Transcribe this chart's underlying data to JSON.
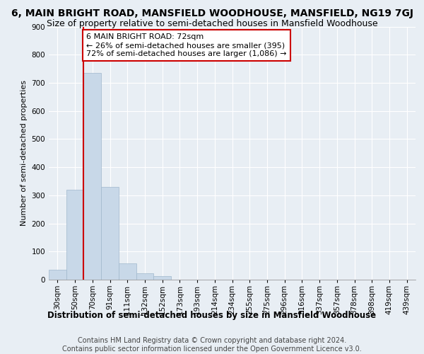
{
  "title1": "6, MAIN BRIGHT ROAD, MANSFIELD WOODHOUSE, MANSFIELD, NG19 7GJ",
  "title2": "Size of property relative to semi-detached houses in Mansfield Woodhouse",
  "xlabel_bottom": "Distribution of semi-detached houses by size in Mansfield Woodhouse",
  "ylabel": "Number of semi-detached properties",
  "footer1": "Contains HM Land Registry data © Crown copyright and database right 2024.",
  "footer2": "Contains public sector information licensed under the Open Government Licence v3.0.",
  "categories": [
    "30sqm",
    "50sqm",
    "70sqm",
    "91sqm",
    "111sqm",
    "132sqm",
    "152sqm",
    "173sqm",
    "193sqm",
    "214sqm",
    "234sqm",
    "255sqm",
    "275sqm",
    "296sqm",
    "316sqm",
    "337sqm",
    "357sqm",
    "378sqm",
    "398sqm",
    "419sqm",
    "439sqm"
  ],
  "values": [
    35,
    320,
    735,
    330,
    58,
    22,
    12,
    0,
    0,
    0,
    0,
    0,
    0,
    0,
    0,
    0,
    0,
    0,
    0,
    0,
    0
  ],
  "bar_color": "#c8d8e8",
  "bar_edge_color": "#a0b8cc",
  "highlight_line_index": 2,
  "highlight_line_color": "#cc0000",
  "annotation_text": "6 MAIN BRIGHT ROAD: 72sqm\n← 26% of semi-detached houses are smaller (395)\n72% of semi-detached houses are larger (1,086) →",
  "annotation_box_color": "#ffffff",
  "annotation_box_edge": "#cc0000",
  "ylim": [
    0,
    900
  ],
  "yticks": [
    0,
    100,
    200,
    300,
    400,
    500,
    600,
    700,
    800,
    900
  ],
  "background_color": "#e8eef4",
  "plot_background": "#e8eef4",
  "grid_color": "#ffffff",
  "title1_fontsize": 10,
  "title2_fontsize": 9,
  "ylabel_fontsize": 8,
  "tick_fontsize": 7.5,
  "annotation_fontsize": 8,
  "footer_fontsize": 7
}
